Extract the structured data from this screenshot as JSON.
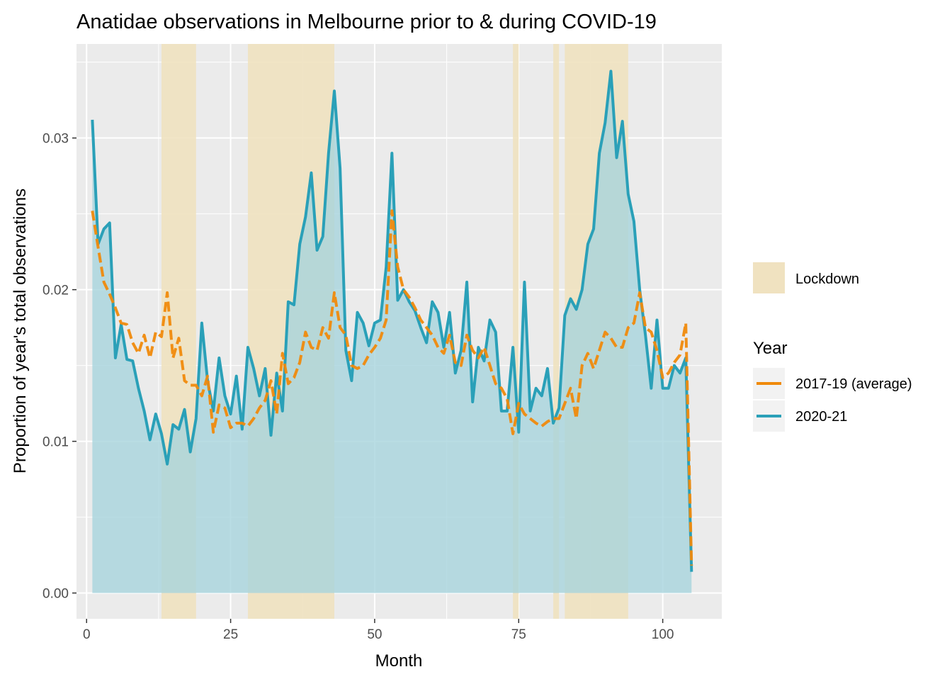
{
  "chart_data": {
    "type": "line",
    "title": "Anatidae observations in Melbourne prior to & during COVID-19",
    "xlabel": "Month",
    "ylabel": "Proportion of year's total observations",
    "xlim": [
      -1.75,
      110.25
    ],
    "ylim": [
      -0.0017,
      0.0362
    ],
    "x_ticks": [
      0,
      25,
      50,
      75,
      100
    ],
    "y_ticks": [
      0,
      0.01,
      0.02,
      0.03
    ],
    "x_tick_labels": [
      "0",
      "25",
      "50",
      "75",
      "100"
    ],
    "y_tick_labels": [
      "0.00",
      "0.01",
      "0.02",
      "0.03"
    ],
    "grid": true,
    "legend_position": "right",
    "lockdown": {
      "label": "Lockdown",
      "color": "#f0e2c0",
      "periods": [
        [
          13,
          19
        ],
        [
          28,
          43
        ],
        [
          74,
          75
        ],
        [
          81,
          82
        ],
        [
          83,
          94
        ]
      ]
    },
    "legend": {
      "fill_label": "Lockdown",
      "title": "Year",
      "entries": [
        "2017-19 (average)",
        "2020-21"
      ]
    },
    "series": [
      {
        "name": "2017-19 (average)",
        "color": "#f08a0c",
        "dash": "dashed",
        "x": [
          1,
          2,
          3,
          4,
          5,
          6,
          7,
          8,
          9,
          10,
          11,
          12,
          13,
          14,
          15,
          16,
          17,
          18,
          19,
          20,
          21,
          22,
          23,
          24,
          25,
          26,
          27,
          28,
          29,
          30,
          31,
          32,
          33,
          34,
          35,
          36,
          37,
          38,
          39,
          40,
          41,
          42,
          43,
          44,
          45,
          46,
          47,
          48,
          49,
          50,
          51,
          52,
          53,
          54,
          55,
          56,
          57,
          58,
          59,
          60,
          61,
          62,
          63,
          64,
          65,
          66,
          67,
          68,
          69,
          70,
          71,
          72,
          73,
          74,
          75,
          76,
          77,
          78,
          79,
          80,
          81,
          82,
          83,
          84,
          85,
          86,
          87,
          88,
          89,
          90,
          91,
          92,
          93,
          94,
          95,
          96,
          97,
          98,
          99,
          100,
          101,
          102,
          103,
          104,
          105
        ],
        "values": [
          0.0252,
          0.0228,
          0.0205,
          0.0197,
          0.0188,
          0.0178,
          0.0177,
          0.0165,
          0.0158,
          0.017,
          0.0155,
          0.0172,
          0.0169,
          0.0198,
          0.0155,
          0.0168,
          0.014,
          0.0137,
          0.0137,
          0.013,
          0.0143,
          0.0106,
          0.0124,
          0.0122,
          0.0109,
          0.0112,
          0.0112,
          0.011,
          0.0115,
          0.0122,
          0.0127,
          0.014,
          0.0118,
          0.0158,
          0.0138,
          0.0142,
          0.0152,
          0.0172,
          0.0162,
          0.016,
          0.0175,
          0.0168,
          0.0198,
          0.0175,
          0.017,
          0.015,
          0.0148,
          0.015,
          0.0157,
          0.0162,
          0.0168,
          0.018,
          0.0252,
          0.0215,
          0.02,
          0.0195,
          0.0188,
          0.018,
          0.0175,
          0.017,
          0.0162,
          0.0158,
          0.017,
          0.0152,
          0.015,
          0.017,
          0.016,
          0.0155,
          0.0162,
          0.015,
          0.0138,
          0.0135,
          0.0128,
          0.0105,
          0.0125,
          0.0118,
          0.0115,
          0.0112,
          0.011,
          0.0113,
          0.0115,
          0.0115,
          0.0125,
          0.0135,
          0.0115,
          0.015,
          0.0158,
          0.0148,
          0.016,
          0.0172,
          0.0168,
          0.0162,
          0.0162,
          0.0175,
          0.0178,
          0.0198,
          0.0175,
          0.0172,
          0.016,
          0.0142,
          0.0145,
          0.0152,
          0.0157,
          0.0178,
          0.0018
        ]
      },
      {
        "name": "2020-21",
        "color": "#2aa0b8",
        "dash": "solid",
        "x": [
          1,
          2,
          3,
          4,
          5,
          6,
          7,
          8,
          9,
          10,
          11,
          12,
          13,
          14,
          15,
          16,
          17,
          18,
          19,
          20,
          21,
          22,
          23,
          24,
          25,
          26,
          27,
          28,
          29,
          30,
          31,
          32,
          33,
          34,
          35,
          36,
          37,
          38,
          39,
          40,
          41,
          42,
          43,
          44,
          45,
          46,
          47,
          48,
          49,
          50,
          51,
          52,
          53,
          54,
          55,
          56,
          57,
          58,
          59,
          60,
          61,
          62,
          63,
          64,
          65,
          66,
          67,
          68,
          69,
          70,
          71,
          72,
          73,
          74,
          75,
          76,
          77,
          78,
          79,
          80,
          81,
          82,
          83,
          84,
          85,
          86,
          87,
          88,
          89,
          90,
          91,
          92,
          93,
          94,
          95,
          96,
          97,
          98,
          99,
          100,
          101,
          102,
          103,
          104,
          105
        ],
        "values": [
          0.0312,
          0.023,
          0.024,
          0.0244,
          0.0155,
          0.0177,
          0.0154,
          0.0153,
          0.0135,
          0.012,
          0.0101,
          0.0118,
          0.0105,
          0.0085,
          0.0111,
          0.0108,
          0.0121,
          0.0093,
          0.0115,
          0.0178,
          0.014,
          0.012,
          0.0155,
          0.013,
          0.0118,
          0.0143,
          0.0108,
          0.0162,
          0.0148,
          0.013,
          0.0148,
          0.0104,
          0.0145,
          0.012,
          0.0192,
          0.019,
          0.023,
          0.0248,
          0.0277,
          0.0226,
          0.0235,
          0.029,
          0.0331,
          0.028,
          0.016,
          0.014,
          0.0185,
          0.0178,
          0.0163,
          0.0178,
          0.018,
          0.0215,
          0.029,
          0.0193,
          0.02,
          0.0192,
          0.0186,
          0.0175,
          0.0165,
          0.0192,
          0.0185,
          0.0162,
          0.0185,
          0.0145,
          0.016,
          0.0205,
          0.0126,
          0.0162,
          0.0153,
          0.018,
          0.0172,
          0.012,
          0.012,
          0.0162,
          0.0106,
          0.0205,
          0.012,
          0.0135,
          0.013,
          0.0148,
          0.0112,
          0.0122,
          0.0183,
          0.0194,
          0.0187,
          0.02,
          0.023,
          0.024,
          0.029,
          0.031,
          0.0344,
          0.0287,
          0.0311,
          0.0263,
          0.0245,
          0.02,
          0.017,
          0.0135,
          0.018,
          0.0135,
          0.0135,
          0.015,
          0.0145,
          0.0155,
          0.0014
        ]
      }
    ]
  }
}
